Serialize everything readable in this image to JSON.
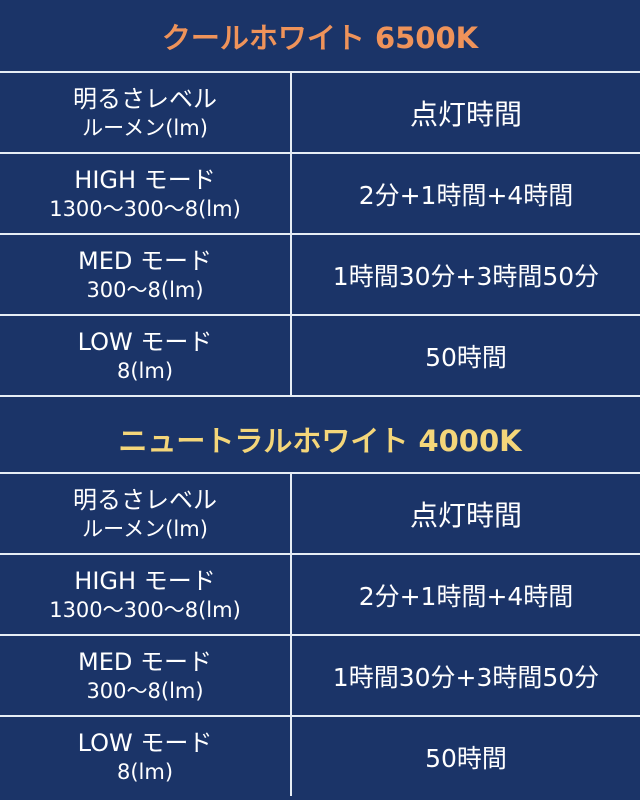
{
  "colors": {
    "background": "#1b3468",
    "title_cool": "#ef935a",
    "title_neutral": "#f4d67a",
    "border": "#e6edf5"
  },
  "sections": [
    {
      "title": "クールホワイト 6500K",
      "rows": [
        {
          "left1": "明るさレベル",
          "left2": "ルーメン(lm)",
          "right": "点灯時間"
        },
        {
          "left1": "HIGH モード",
          "left2": "1300〜300〜8(lm)",
          "right": "2分+1時間+4時間"
        },
        {
          "left1": "MED モード",
          "left2": "300〜8(lm)",
          "right": "1時間30分+3時間50分"
        },
        {
          "left1": "LOW モード",
          "left2": "8(lm)",
          "right": "50時間"
        }
      ]
    },
    {
      "title": "ニュートラルホワイト 4000K",
      "rows": [
        {
          "left1": "明るさレベル",
          "left2": "ルーメン(lm)",
          "right": "点灯時間"
        },
        {
          "left1": "HIGH モード",
          "left2": "1300〜300〜8(lm)",
          "right": "2分+1時間+4時間"
        },
        {
          "left1": "MED モード",
          "left2": "300〜8(lm)",
          "right": "1時間30分+3時間50分"
        },
        {
          "left1": "LOW モード",
          "left2": "8(lm)",
          "right": "50時間"
        }
      ]
    }
  ]
}
